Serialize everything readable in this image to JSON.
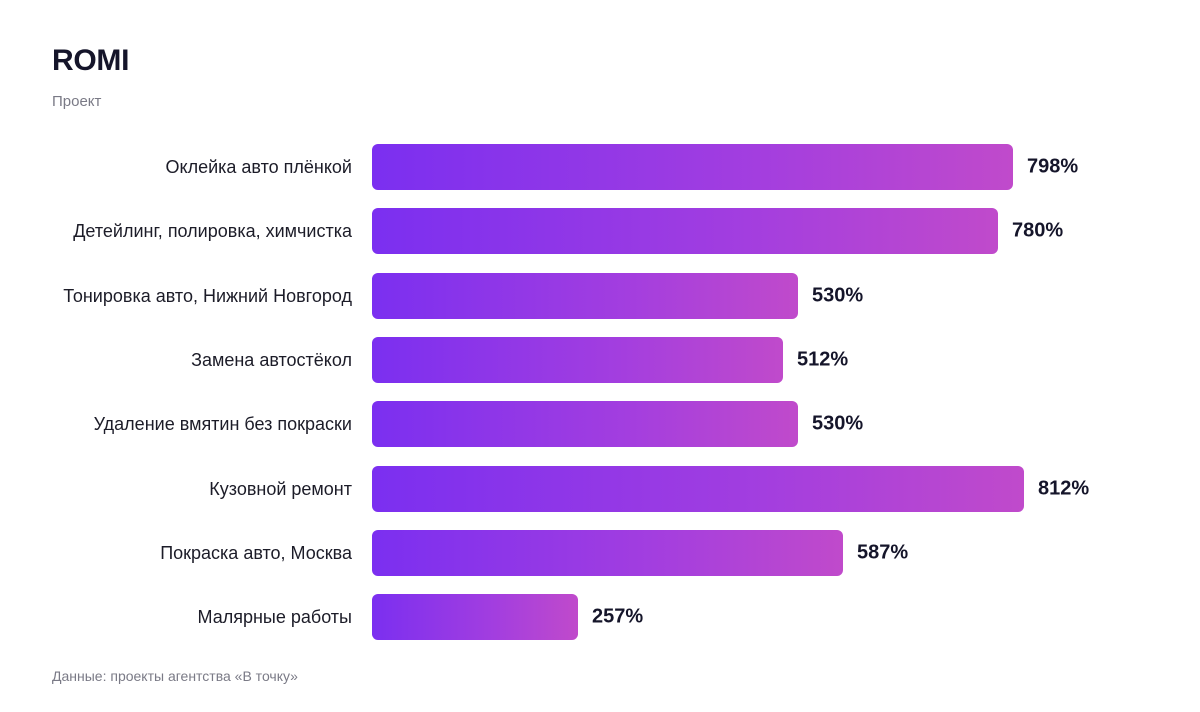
{
  "chart_data": {
    "type": "bar",
    "orientation": "horizontal",
    "title": "ROMI",
    "subtitle": "Проект",
    "categories": [
      "Оклейка авто плёнкой",
      "Детейлинг, полировка, химчистка",
      "Тонировка авто, Нижний Новгород",
      "Замена автостёкол",
      "Удаление вмятин без покраски",
      "Кузовной ремонт",
      "Покраска авто, Москва",
      "Малярные работы"
    ],
    "values": [
      798,
      780,
      530,
      512,
      530,
      812,
      587,
      257
    ],
    "value_labels": [
      "798%",
      "780%",
      "530%",
      "512%",
      "530%",
      "812%",
      "587%",
      "257%"
    ],
    "unit": "%",
    "source": "Данные: проекты агентства «В точку»",
    "grid": false,
    "legend": "none",
    "colors": {
      "bar_start": "#7b2ff0",
      "bar_end": "#c04acb",
      "text": "#1c1c28",
      "muted": "#7a7a86"
    }
  }
}
